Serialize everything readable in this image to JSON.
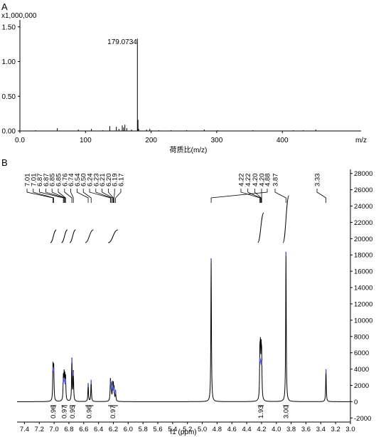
{
  "panels": {
    "a_label": "A",
    "b_label": "B"
  },
  "chart_data": [
    {
      "panel": "A",
      "type": "bar",
      "y_multiplier_label": "x1,000,000",
      "xlabel": "荷质比(m/z)",
      "x_unit_label": "m/z",
      "xlim": [
        0,
        520
      ],
      "ylim": [
        0,
        1.6
      ],
      "x_ticks": [
        0.0,
        100,
        200,
        300,
        400
      ],
      "x_tick_labels": [
        "0.0",
        "100",
        "200",
        "300",
        "400"
      ],
      "y_ticks": [
        0.0,
        0.5,
        1.0,
        1.5
      ],
      "y_tick_labels": [
        "0.00",
        "0.50",
        "1.00",
        "1.50"
      ],
      "annotation": "179.0734",
      "peaks": [
        {
          "mz": 24,
          "intensity": 0.01
        },
        {
          "mz": 57,
          "intensity": 0.04
        },
        {
          "mz": 89,
          "intensity": 0.02
        },
        {
          "mz": 109,
          "intensity": 0.03
        },
        {
          "mz": 126,
          "intensity": 0.01
        },
        {
          "mz": 137,
          "intensity": 0.07
        },
        {
          "mz": 147,
          "intensity": 0.06
        },
        {
          "mz": 151,
          "intensity": 0.03
        },
        {
          "mz": 156,
          "intensity": 0.08
        },
        {
          "mz": 158,
          "intensity": 0.05
        },
        {
          "mz": 160,
          "intensity": 0.09
        },
        {
          "mz": 163,
          "intensity": 0.04
        },
        {
          "mz": 170,
          "intensity": 0.02
        },
        {
          "mz": 179.0734,
          "intensity": 1.33
        },
        {
          "mz": 180,
          "intensity": 0.16
        },
        {
          "mz": 181,
          "intensity": 0.03
        },
        {
          "mz": 193,
          "intensity": 0.02
        },
        {
          "mz": 198,
          "intensity": 0.03
        },
        {
          "mz": 212,
          "intensity": 0.01
        },
        {
          "mz": 230,
          "intensity": 0.01
        },
        {
          "mz": 254,
          "intensity": 0.01
        },
        {
          "mz": 281,
          "intensity": 0.02
        },
        {
          "mz": 301,
          "intensity": 0.01
        },
        {
          "mz": 355,
          "intensity": 0.01
        },
        {
          "mz": 417,
          "intensity": 0.01
        },
        {
          "mz": 432,
          "intensity": 0.01
        },
        {
          "mz": 451,
          "intensity": 0.02
        }
      ]
    },
    {
      "panel": "B",
      "type": "line",
      "xlabel": "f1 (ppm)",
      "xlim": [
        7.5,
        3.0
      ],
      "x_reversed": true,
      "ylim": [
        -2500,
        28500
      ],
      "y_axis_side": "right",
      "x_ticks": [
        7.4,
        7.2,
        7.0,
        6.8,
        6.6,
        6.4,
        6.2,
        6.0,
        5.8,
        5.6,
        5.4,
        5.2,
        5.0,
        4.8,
        4.6,
        4.4,
        4.2,
        4.0,
        3.8,
        3.6,
        3.4,
        3.2,
        3.0
      ],
      "x_tick_labels": [
        "7.4",
        "7.2",
        "7.0",
        "6.8",
        "6.6",
        "6.4",
        "6.2",
        "6.0",
        "5.8",
        "5.6",
        "5.4",
        "5.2",
        "5.0",
        "4.8",
        "4.6",
        "4.4",
        "4.2",
        "4.0",
        "3.8",
        "3.6",
        "3.4",
        "3.2",
        "3.0"
      ],
      "y_ticks": [
        -2000,
        0,
        2000,
        4000,
        6000,
        8000,
        10000,
        12000,
        14000,
        16000,
        18000,
        20000,
        22000,
        24000,
        26000,
        28000
      ],
      "y_tick_labels": [
        "-2000",
        "0",
        "2000",
        "4000",
        "6000",
        "8000",
        "10000",
        "12000",
        "14000",
        "16000",
        "18000",
        "20000",
        "22000",
        "24000",
        "26000",
        "28000"
      ],
      "peak_labels": [
        "7.01",
        "7.01",
        "6.87",
        "6.87",
        "6.85",
        "6.85",
        "6.76",
        "6.74",
        "6.54",
        "6.50",
        "6.24",
        "6.23",
        "6.21",
        "6.20",
        "6.19",
        "6.17",
        "4.88",
        "4.22",
        "4.22",
        "4.20",
        "4.20",
        "3.87",
        "3.33"
      ],
      "integrations": [
        {
          "from": 7.05,
          "to": 6.97,
          "value": "0.96"
        },
        {
          "from": 6.9,
          "to": 6.82,
          "value": "0.97"
        },
        {
          "from": 6.79,
          "to": 6.71,
          "value": "0.95"
        },
        {
          "from": 6.58,
          "to": 6.47,
          "value": "0.96"
        },
        {
          "from": 6.27,
          "to": 6.14,
          "value": "0.97"
        },
        {
          "from": 4.25,
          "to": 4.17,
          "value": "1.93"
        },
        {
          "from": 3.91,
          "to": 3.83,
          "value": "3.00"
        }
      ],
      "peaks": [
        {
          "ppm": 7.015,
          "intensity": 4200
        },
        {
          "ppm": 7.005,
          "intensity": 4000
        },
        {
          "ppm": 6.875,
          "intensity": 2800
        },
        {
          "ppm": 6.865,
          "intensity": 2900
        },
        {
          "ppm": 6.855,
          "intensity": 2600
        },
        {
          "ppm": 6.845,
          "intensity": 2700
        },
        {
          "ppm": 6.76,
          "intensity": 5200
        },
        {
          "ppm": 6.74,
          "intensity": 3600
        },
        {
          "ppm": 6.54,
          "intensity": 2200
        },
        {
          "ppm": 6.5,
          "intensity": 2600
        },
        {
          "ppm": 6.24,
          "intensity": 2500
        },
        {
          "ppm": 6.23,
          "intensity": 1900
        },
        {
          "ppm": 6.21,
          "intensity": 2000
        },
        {
          "ppm": 6.2,
          "intensity": 1800
        },
        {
          "ppm": 6.19,
          "intensity": 1500
        },
        {
          "ppm": 6.17,
          "intensity": 1300
        },
        {
          "ppm": 4.88,
          "intensity": 17500
        },
        {
          "ppm": 4.222,
          "intensity": 5300
        },
        {
          "ppm": 4.215,
          "intensity": 5200
        },
        {
          "ppm": 4.205,
          "intensity": 5000
        },
        {
          "ppm": 4.198,
          "intensity": 4900
        },
        {
          "ppm": 3.87,
          "intensity": 18300
        },
        {
          "ppm": 3.33,
          "intensity": 3900
        }
      ]
    }
  ]
}
